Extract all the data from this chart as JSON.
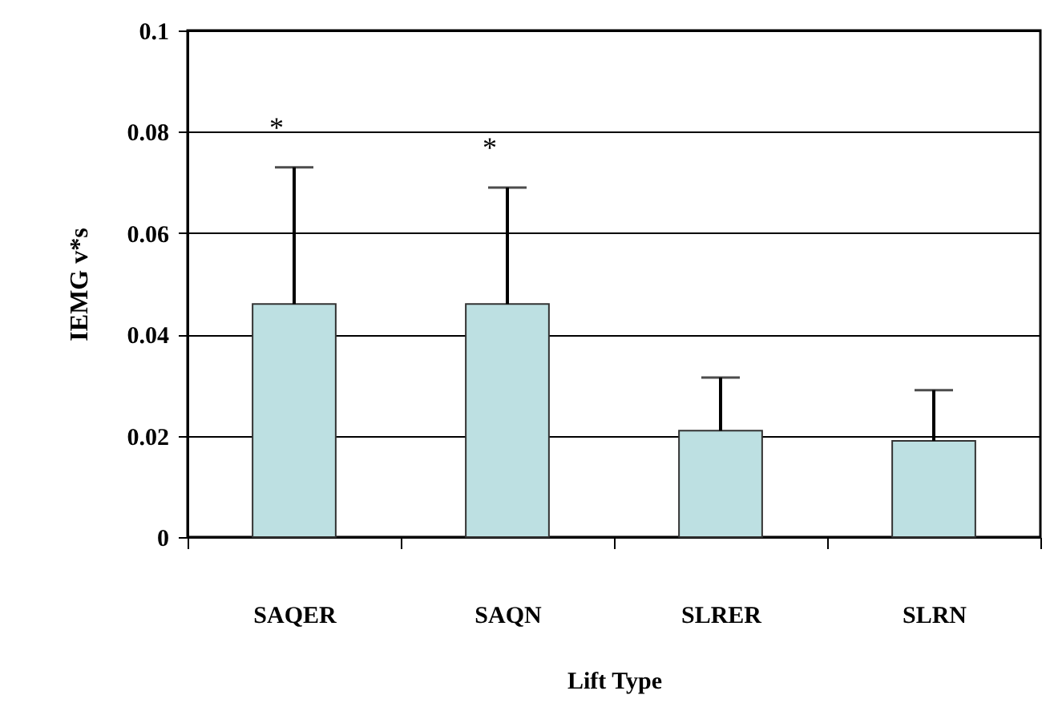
{
  "chart_data": {
    "type": "bar",
    "xlabel": "Lift Type",
    "ylabel": "IEMG v*s",
    "categories": [
      "SAQER",
      "SAQN",
      "SLRER",
      "SLRN"
    ],
    "values": [
      0.046,
      0.046,
      0.021,
      0.019
    ],
    "errors": [
      [
        0.046,
        0.073
      ],
      [
        0.046,
        0.069
      ],
      [
        0.021,
        0.0315
      ],
      [
        0.019,
        0.029
      ]
    ],
    "color": "#bde0e2",
    "ylim": [
      0,
      0.1
    ],
    "yticks": [
      0,
      0.02,
      0.04,
      0.06,
      0.08,
      0.1
    ],
    "grid": "y",
    "annotations": [
      "*",
      "*"
    ]
  }
}
